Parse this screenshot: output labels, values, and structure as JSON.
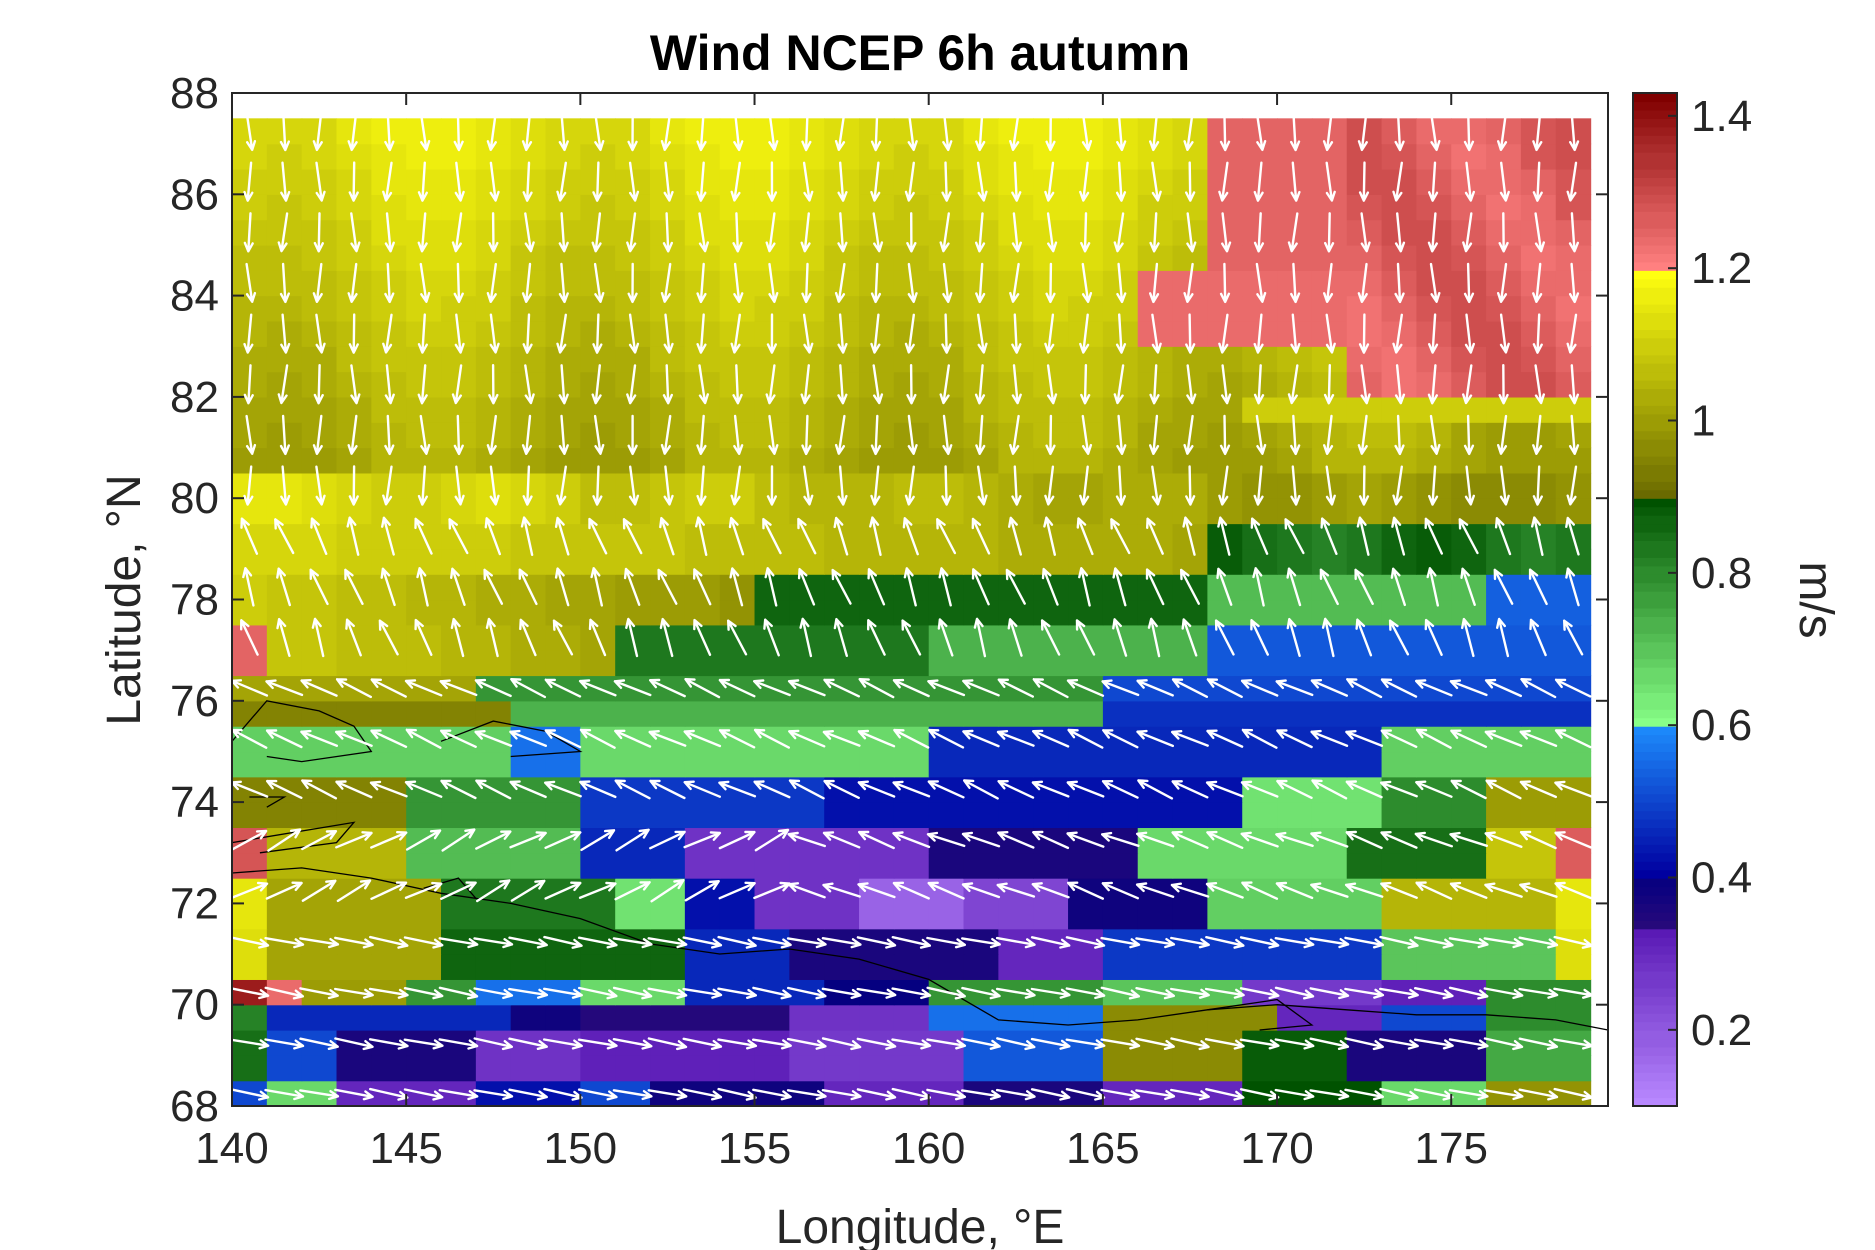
{
  "chart_data": {
    "type": "heatmap",
    "title": "Wind NCEP 6h autumn",
    "xlabel": "Longitude, °E",
    "ylabel": "Latitude, °N",
    "colorbar_label": "m/s",
    "xlim": [
      140,
      179.5
    ],
    "ylim": [
      68,
      88
    ],
    "x_ticks": [
      "140",
      "145",
      "150",
      "155",
      "160",
      "165",
      "170",
      "175"
    ],
    "y_ticks": [
      "68",
      "70",
      "72",
      "74",
      "76",
      "78",
      "80",
      "82",
      "84",
      "86",
      "88"
    ],
    "clim": [
      0.1,
      1.43
    ],
    "colorbar_ticks": [
      "0.2",
      "0.4",
      "0.6",
      "0.8",
      "1",
      "1.2",
      "1.4"
    ],
    "colorbar_tick_values": [
      0.2,
      0.4,
      0.6,
      0.8,
      1.0,
      1.2,
      1.4
    ],
    "colormap": [
      {
        "from": 0.1,
        "to": 0.33,
        "low": "#b888ff",
        "high": "#5a1ab5"
      },
      {
        "from": 0.33,
        "to": 0.4,
        "low": "#2a0a7a",
        "high": "#050080"
      },
      {
        "from": 0.4,
        "to": 0.6,
        "low": "#0000a0",
        "high": "#1e90ff"
      },
      {
        "from": 0.6,
        "to": 0.9,
        "low": "#88ff88",
        "high": "#005200"
      },
      {
        "from": 0.9,
        "to": 1.2,
        "low": "#6a6a00",
        "high": "#ffff10"
      },
      {
        "from": 1.2,
        "to": 1.43,
        "low": "#ff8080",
        "high": "#800000"
      }
    ],
    "grid": false,
    "cell_size_deg": {
      "lon": 1.0,
      "lat": 0.5
    },
    "wind_vectors": {
      "color": "#ffffff",
      "note": "white arrows show wind direction; 1-degree by 0.5-degree grid"
    },
    "values": {
      "rows_lat_centers": [
        68.25,
        68.75,
        69.25,
        69.75,
        70.25,
        70.75,
        71.25,
        71.75,
        72.25,
        72.75,
        73.25,
        73.75,
        74.25,
        74.75,
        75.25,
        75.75,
        76.25,
        76.75,
        77.25,
        77.75,
        78.25,
        78.75,
        79.25,
        79.75,
        80.25,
        80.75,
        81.25,
        81.75,
        82.25,
        82.75,
        83.25,
        83.75,
        84.25,
        84.75,
        85.25,
        85.75,
        86.25,
        86.75,
        87.25
      ],
      "region_values": [
        {
          "region": "lat 80.5-87.5, lon 140-166",
          "value": 1.08
        },
        {
          "region": "lat 82-87.5, lon 172.5-179",
          "value": 1.26
        },
        {
          "region": "lat 78.5-80, lon 140-157",
          "value": 1.06
        },
        {
          "region": "lat 76.5-78.5, lon 157-168",
          "value": 0.82
        },
        {
          "region": "lat 76-78, lon 168-179",
          "value": 0.5
        },
        {
          "region": "lat 74-75.5, lon 150-171",
          "value": 0.45
        },
        {
          "region": "lat 71.5-73.5, lon 153-164",
          "value": 0.24
        },
        {
          "region": "lat 70.5-72, lon 146-153",
          "value": 0.83
        },
        {
          "region": "lat 68-69, lon 141-160",
          "value": 0.34
        },
        {
          "region": "lat 72.5-73.5, lon 140-141",
          "value": 1.28
        },
        {
          "region": "lat 70-70.5, lon 140",
          "value": 1.38
        }
      ]
    }
  }
}
